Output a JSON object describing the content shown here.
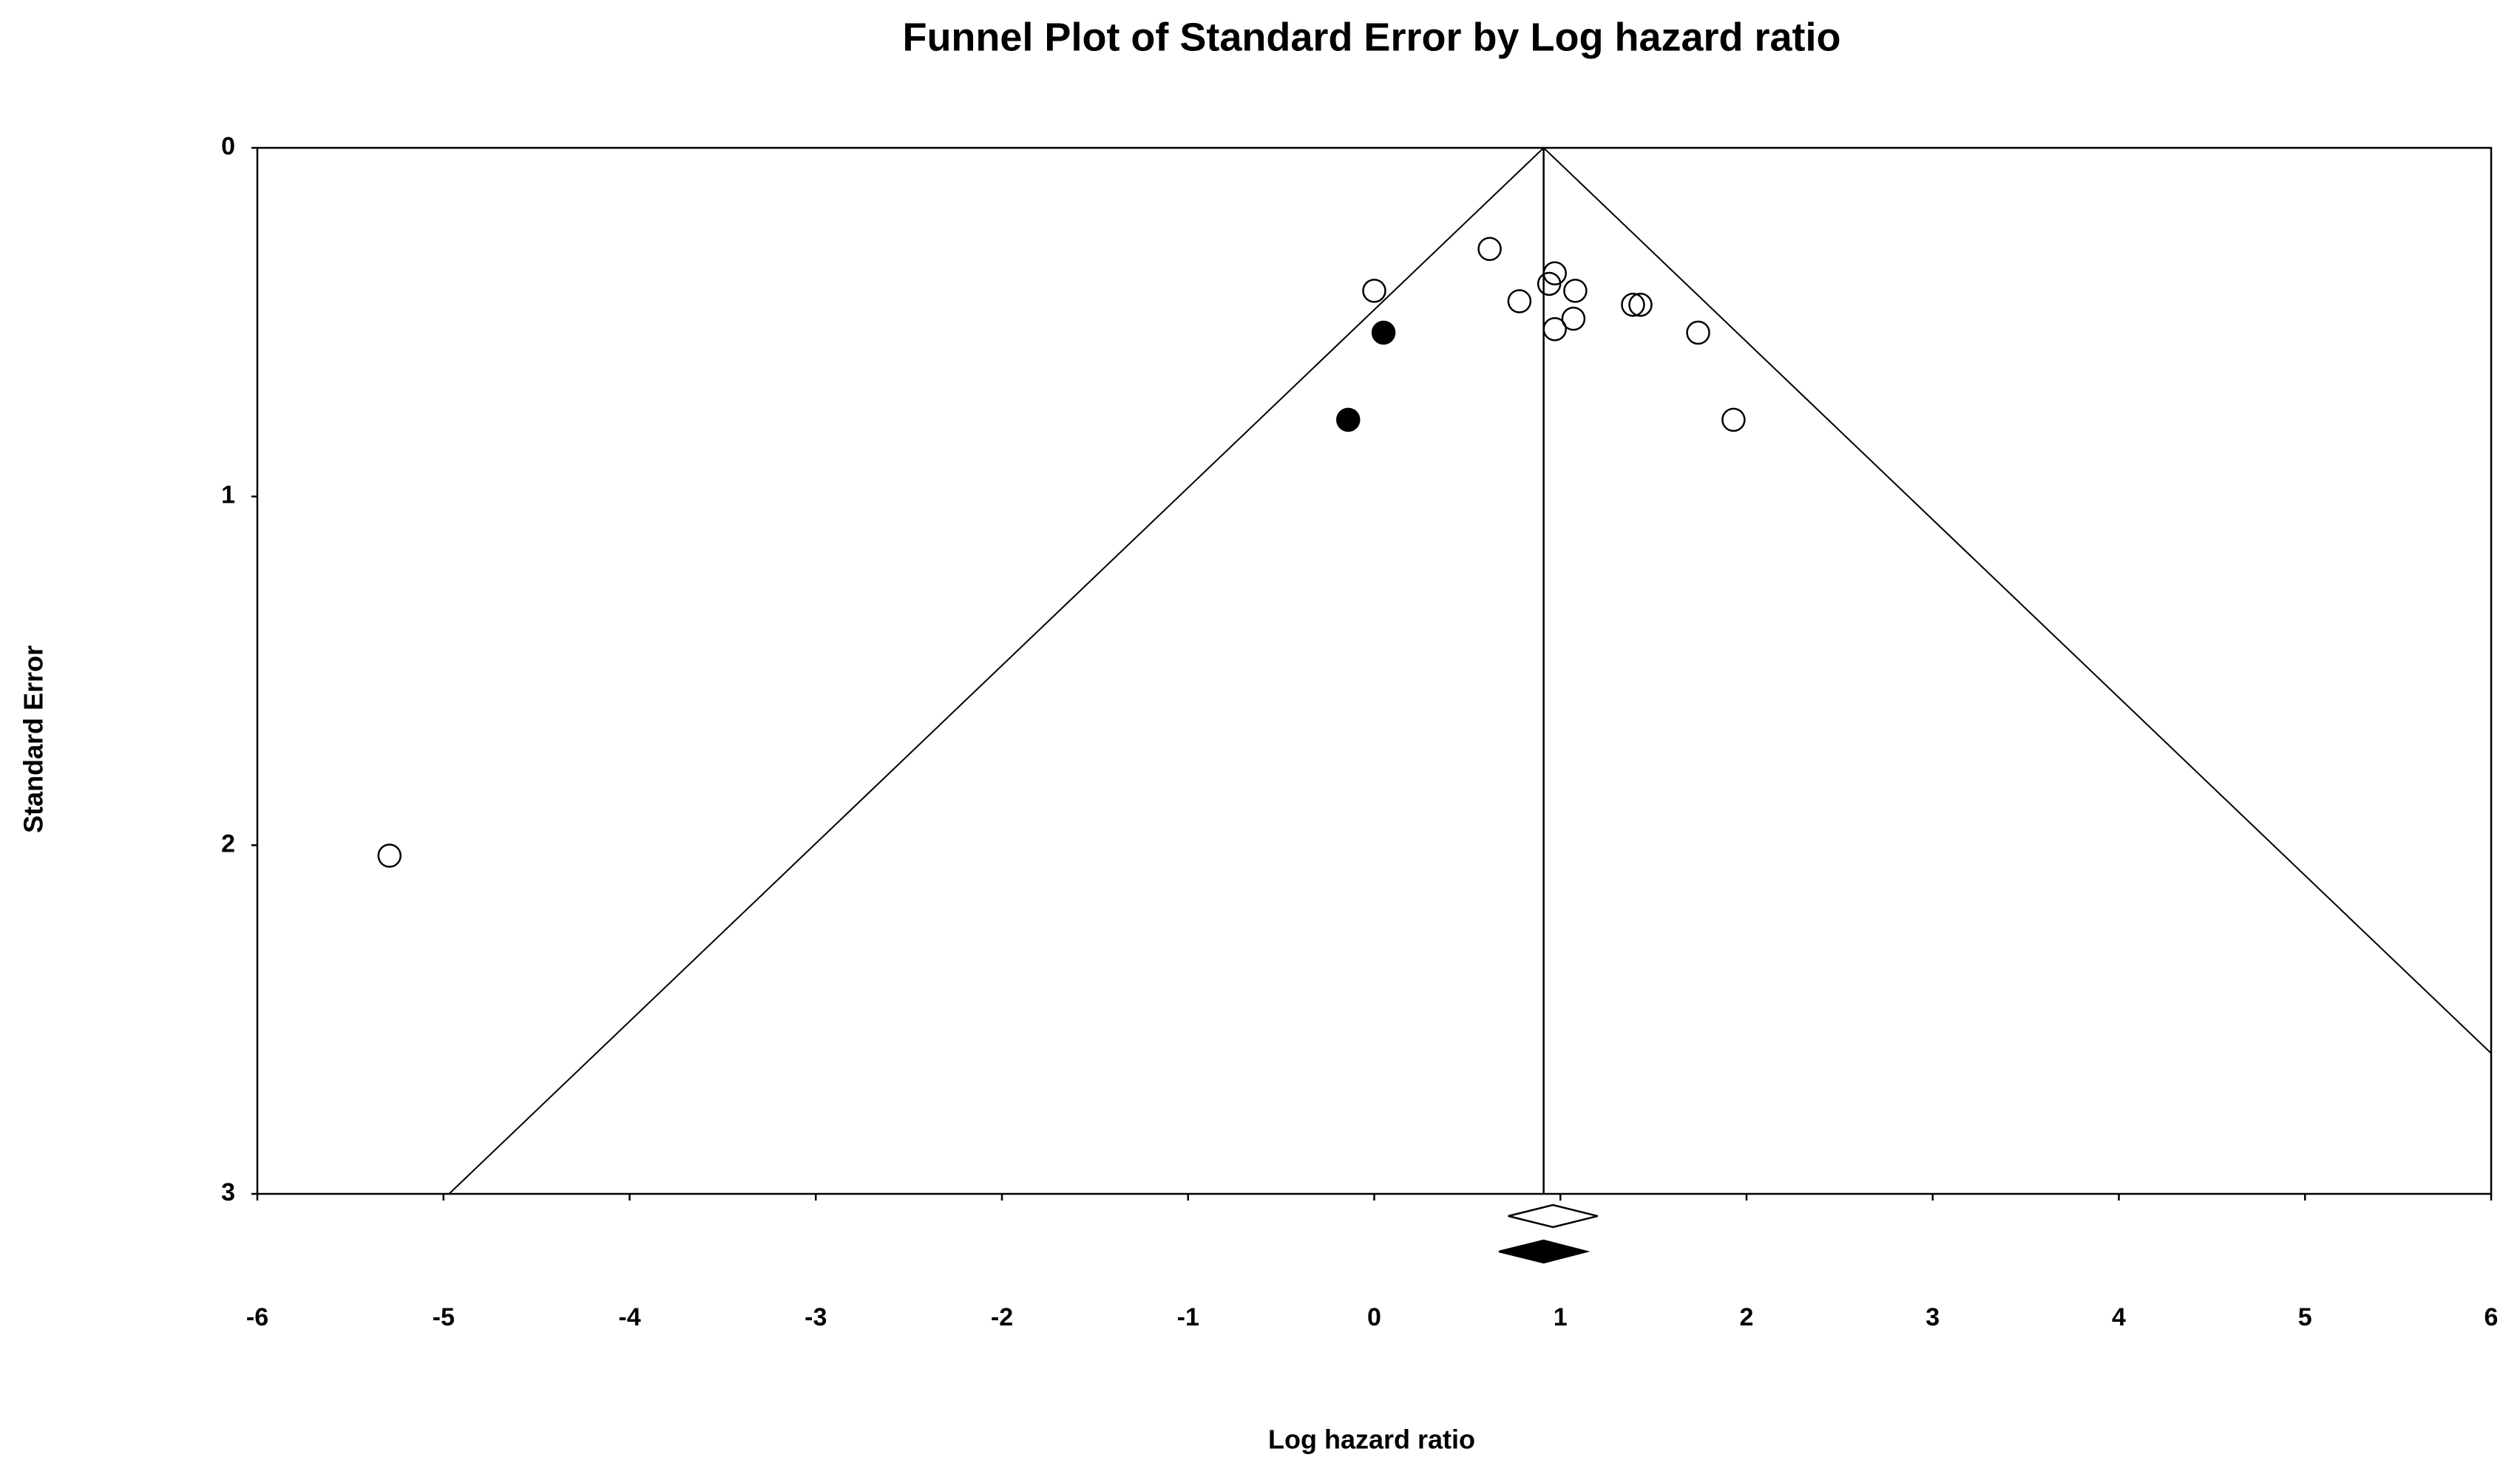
{
  "chart_data": {
    "type": "funnel",
    "title": "Funnel Plot of Standard Error by Log hazard ratio",
    "x_label": "Log hazard ratio",
    "y_label": "Standard Error",
    "xlim": [
      -6,
      6
    ],
    "xticks": [
      -6,
      -5,
      -4,
      -3,
      -2,
      -1,
      0,
      1,
      2,
      3,
      4,
      5,
      6
    ],
    "ylim": [
      0,
      3
    ],
    "yticks": [
      0,
      1,
      2,
      3
    ],
    "y_inverted": true,
    "reference_x": 0.91,
    "funnel_z": 1.96,
    "line_color": "#000000",
    "series": [
      {
        "color": "#000000",
        "marker_fill": "none",
        "x": [
          0.62,
          0.0,
          0.78,
          0.94,
          0.97,
          1.08,
          0.97,
          1.07,
          1.39,
          1.43,
          1.74,
          1.93,
          -5.29
        ],
        "values": [
          0.29,
          0.41,
          0.44,
          0.39,
          0.36,
          0.41,
          0.52,
          0.49,
          0.45,
          0.45,
          0.53,
          0.78,
          2.03
        ]
      },
      {
        "color": "#000000",
        "marker_fill": "#000000",
        "x": [
          0.05,
          -0.14
        ],
        "values": [
          0.53,
          0.78
        ]
      }
    ],
    "summary_diamonds": [
      {
        "estimate": 0.96,
        "lower": 0.72,
        "upper": 1.2,
        "fill": "#ffffff"
      },
      {
        "estimate": 0.91,
        "lower": 0.67,
        "upper": 1.14,
        "fill": "#000000"
      }
    ]
  }
}
